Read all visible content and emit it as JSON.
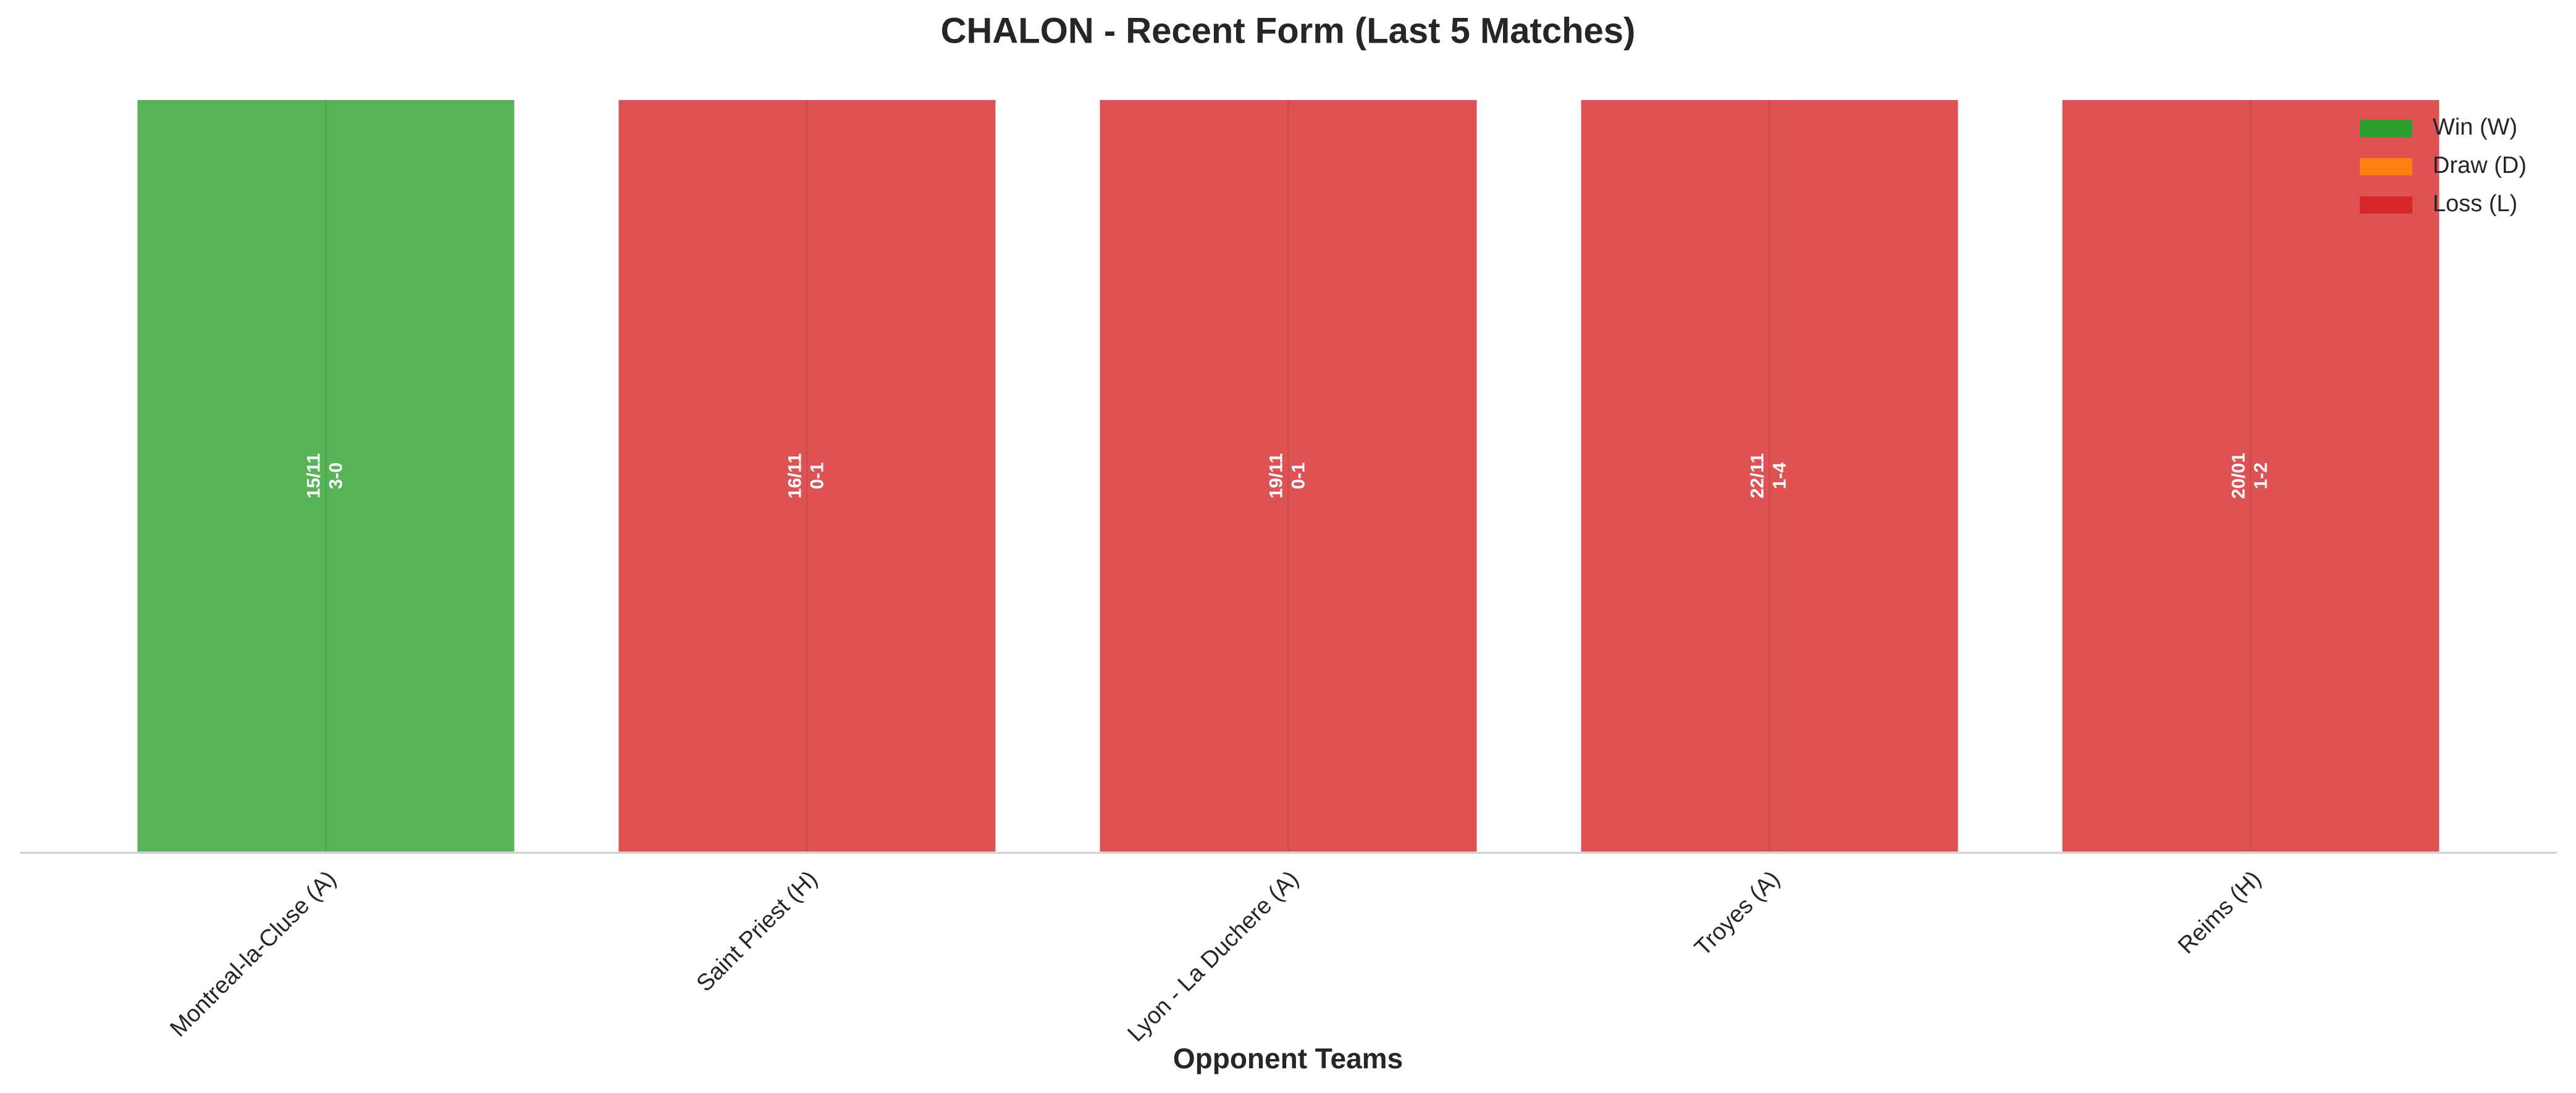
{
  "chart_data": {
    "type": "bar",
    "title": "CHALON - Recent Form (Last 5 Matches)",
    "x_label": "Opponent Teams",
    "categories": [
      "Montreal-la-Cluse (A)",
      "Saint Priest (H)",
      "Lyon - La Duchere (A)",
      "Troyes (A)",
      "Reims (H)"
    ],
    "values": [
      1,
      1,
      1,
      1,
      1
    ],
    "ylim": [
      0,
      1
    ],
    "colors": [
      "#2ca02c",
      "#d62728",
      "#d62728",
      "#d62728",
      "#d62728"
    ],
    "bar_alpha": 0.8,
    "dates": [
      "15/11",
      "16/11",
      "19/11",
      "22/11",
      "20/01"
    ],
    "scores": [
      "3-0",
      "0-1",
      "0-1",
      "1-4",
      "1-2"
    ],
    "legend": [
      {
        "name": "Win (W)",
        "color": "#2ca02c"
      },
      {
        "name": "Draw (D)",
        "color": "#ff7f0e"
      },
      {
        "name": "Loss (L)",
        "color": "#d62728"
      }
    ],
    "legend_position": "upper right"
  }
}
